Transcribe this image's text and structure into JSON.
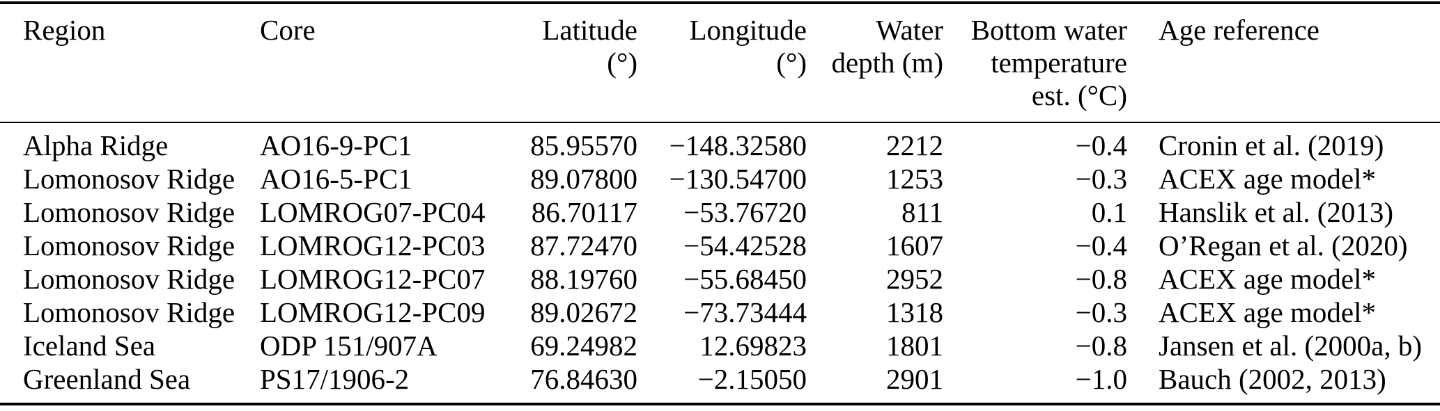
{
  "page": {
    "background_color": "#ffffff",
    "text_color": "#000000",
    "rule_color": "#000000"
  },
  "table": {
    "columns": [
      {
        "id": "region",
        "label": "Region",
        "align": "left"
      },
      {
        "id": "core",
        "label": "Core",
        "align": "left"
      },
      {
        "id": "latitude",
        "label": "Latitude\n(°)",
        "align": "right"
      },
      {
        "id": "longitude",
        "label": "Longitude\n(°)",
        "align": "right"
      },
      {
        "id": "water_depth",
        "label": "Water\ndepth (m)",
        "align": "right"
      },
      {
        "id": "bottom_water_temp",
        "label": "Bottom water\ntemperature\nest. (°C)",
        "align": "right"
      },
      {
        "id": "age_reference",
        "label": "Age reference",
        "align": "left"
      }
    ],
    "rows": [
      [
        "Alpha Ridge",
        "AO16-9-PC1",
        "85.95570",
        "−148.32580",
        "2212",
        "−0.4",
        "Cronin et al. (2019)"
      ],
      [
        "Lomonosov Ridge",
        "AO16-5-PC1",
        "89.07800",
        "−130.54700",
        "1253",
        "−0.3",
        "ACEX age model*"
      ],
      [
        "Lomonosov Ridge",
        "LOMROG07-PC04",
        "86.70117",
        "−53.76720",
        "811",
        "0.1",
        "Hanslik et al. (2013)"
      ],
      [
        "Lomonosov Ridge",
        "LOMROG12-PC03",
        "87.72470",
        "−54.42528",
        "1607",
        "−0.4",
        "O’Regan et al. (2020)"
      ],
      [
        "Lomonosov Ridge",
        "LOMROG12-PC07",
        "88.19760",
        "−55.68450",
        "2952",
        "−0.8",
        "ACEX age model*"
      ],
      [
        "Lomonosov Ridge",
        "LOMROG12-PC09",
        "89.02672",
        "−73.73444",
        "1318",
        "−0.3",
        "ACEX age model*"
      ],
      [
        "Iceland Sea",
        "ODP 151/907A",
        "69.24982",
        "12.69823",
        "1801",
        "−0.8",
        "Jansen et al. (2000a, b)"
      ],
      [
        "Greenland Sea",
        "PS17/1906-2",
        "76.84630",
        "−2.15050",
        "2901",
        "−1.0",
        "Bauch (2002, 2013)"
      ]
    ]
  }
}
